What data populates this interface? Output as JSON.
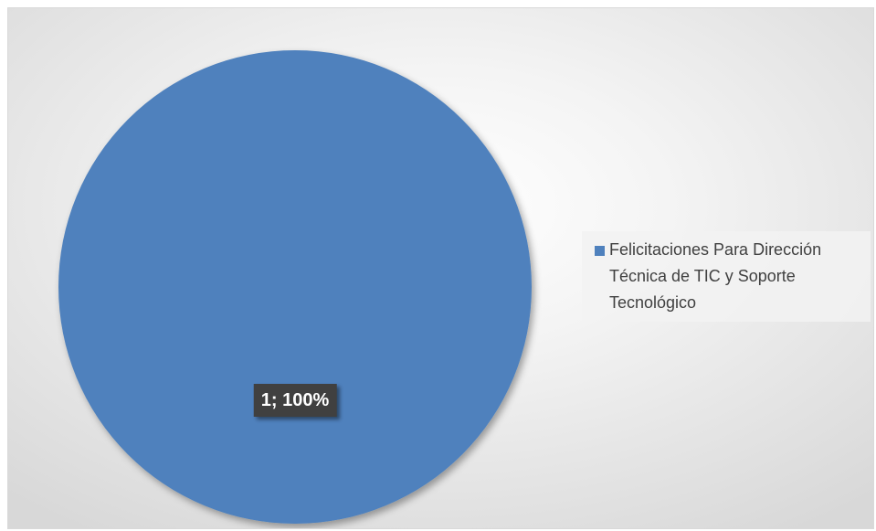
{
  "chart_data": {
    "type": "pie",
    "title": "",
    "categories": [
      "Felicitaciones Para Dirección Técnica de TIC y Soporte Tecnológico"
    ],
    "values": [
      1
    ],
    "percentages": [
      100
    ],
    "data_labels": [
      "1; 100%"
    ],
    "colors": [
      "#4f81bd"
    ],
    "legend": "right"
  }
}
